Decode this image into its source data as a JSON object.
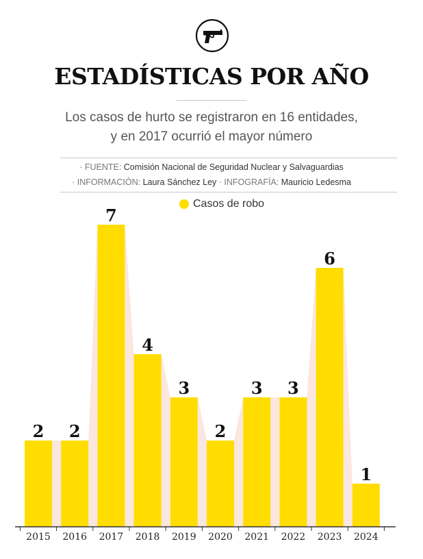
{
  "header": {
    "icon": "gun-icon",
    "title": "ESTADÍSTICAS POR AÑO",
    "subtitle_line1": "Los casos de hurto se registraron en 16 entidades,",
    "subtitle_line2": "y en 2017 ocurrió el mayor número"
  },
  "credits": {
    "line1_key": "· FUENTE:",
    "line1_value": "Comisión Nacional de Seguridad Nuclear y Salvaguardias",
    "line2_key_a": "· INFORMACIÓN:",
    "line2_value_a": "Laura Sánchez Ley",
    "line2_key_b": "· INFOGRAFÍA:",
    "line2_value_b": "Mauricio Ledesma"
  },
  "colors": {
    "bar": "#ffdd00",
    "shadow": "#fbe7df",
    "axis": "#333333"
  },
  "chart_data": {
    "type": "bar",
    "title": "ESTADÍSTICAS POR AÑO",
    "categories": [
      "2015",
      "2016",
      "2017",
      "2018",
      "2019",
      "2020",
      "2021",
      "2022",
      "2023",
      "2024"
    ],
    "series": [
      {
        "name": "Casos de robo",
        "values": [
          2,
          2,
          7,
          4,
          3,
          2,
          3,
          3,
          6,
          1
        ]
      }
    ],
    "ylim": [
      0,
      7
    ],
    "grid": false,
    "legend": "top-center",
    "data_labels": true
  }
}
